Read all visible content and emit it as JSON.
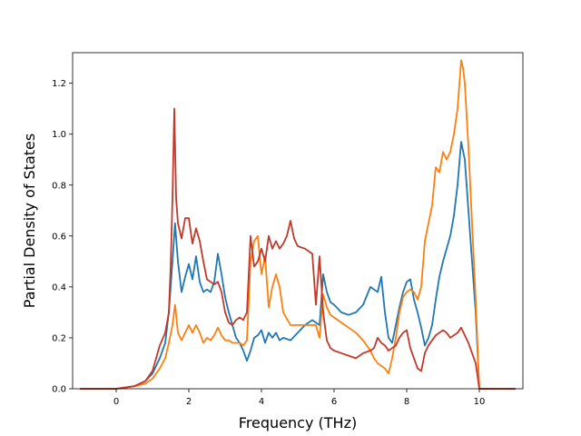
{
  "chart_data": {
    "type": "line",
    "title": "",
    "xlabel": "Frequency (THz)",
    "ylabel": "Partial Density of States",
    "xlim": [
      -1.2,
      11.2
    ],
    "ylim": [
      0,
      1.32
    ],
    "xticks": [
      0,
      2,
      4,
      6,
      8,
      10
    ],
    "yticks": [
      0.0,
      0.2,
      0.4,
      0.6,
      0.8,
      1.0,
      1.2
    ],
    "xtick_labels": [
      "0",
      "2",
      "4",
      "6",
      "8",
      "10"
    ],
    "ytick_labels": [
      "0.0",
      "0.2",
      "0.4",
      "0.6",
      "0.8",
      "1.0",
      "1.2"
    ],
    "grid": false,
    "legend": false,
    "series": [
      {
        "color": "#1f77b4",
        "x": [
          -1.0,
          0.0,
          0.5,
          0.8,
          1.0,
          1.2,
          1.35,
          1.45,
          1.55,
          1.62,
          1.7,
          1.8,
          1.9,
          2.0,
          2.1,
          2.2,
          2.3,
          2.4,
          2.5,
          2.6,
          2.7,
          2.8,
          2.9,
          3.0,
          3.1,
          3.2,
          3.3,
          3.4,
          3.5,
          3.6,
          3.7,
          3.8,
          3.9,
          4.0,
          4.1,
          4.2,
          4.3,
          4.4,
          4.5,
          4.6,
          4.8,
          5.0,
          5.2,
          5.4,
          5.5,
          5.6,
          5.7,
          5.8,
          5.9,
          6.0,
          6.2,
          6.4,
          6.6,
          6.8,
          7.0,
          7.1,
          7.2,
          7.3,
          7.4,
          7.5,
          7.6,
          7.7,
          7.8,
          7.9,
          8.0,
          8.1,
          8.2,
          8.3,
          8.4,
          8.5,
          8.6,
          8.7,
          8.8,
          8.9,
          9.0,
          9.1,
          9.2,
          9.3,
          9.4,
          9.5,
          9.6,
          9.7,
          9.8,
          9.9,
          10.0,
          10.5,
          11.0
        ],
        "y": [
          0.0,
          0.0,
          0.01,
          0.03,
          0.06,
          0.12,
          0.18,
          0.3,
          0.5,
          0.65,
          0.5,
          0.38,
          0.44,
          0.49,
          0.43,
          0.52,
          0.42,
          0.38,
          0.39,
          0.38,
          0.42,
          0.53,
          0.45,
          0.36,
          0.3,
          0.25,
          0.2,
          0.18,
          0.15,
          0.11,
          0.15,
          0.2,
          0.21,
          0.23,
          0.18,
          0.22,
          0.2,
          0.22,
          0.19,
          0.2,
          0.19,
          0.22,
          0.25,
          0.27,
          0.26,
          0.25,
          0.45,
          0.38,
          0.34,
          0.33,
          0.3,
          0.29,
          0.3,
          0.33,
          0.4,
          0.39,
          0.38,
          0.44,
          0.3,
          0.2,
          0.18,
          0.25,
          0.32,
          0.38,
          0.42,
          0.43,
          0.35,
          0.3,
          0.24,
          0.17,
          0.2,
          0.25,
          0.35,
          0.44,
          0.5,
          0.55,
          0.6,
          0.68,
          0.8,
          0.97,
          0.9,
          0.7,
          0.5,
          0.3,
          0.0,
          0.0,
          0.0
        ]
      },
      {
        "color": "#ff7f0e",
        "x": [
          -1.0,
          0.0,
          0.5,
          0.8,
          1.0,
          1.2,
          1.35,
          1.45,
          1.55,
          1.62,
          1.7,
          1.8,
          1.9,
          2.0,
          2.1,
          2.2,
          2.3,
          2.4,
          2.5,
          2.6,
          2.7,
          2.8,
          2.9,
          3.0,
          3.1,
          3.2,
          3.3,
          3.4,
          3.5,
          3.6,
          3.7,
          3.8,
          3.9,
          4.0,
          4.1,
          4.2,
          4.3,
          4.4,
          4.5,
          4.6,
          4.8,
          5.0,
          5.2,
          5.4,
          5.5,
          5.6,
          5.7,
          5.8,
          5.9,
          6.0,
          6.2,
          6.4,
          6.6,
          6.8,
          7.0,
          7.1,
          7.2,
          7.3,
          7.4,
          7.5,
          7.6,
          7.7,
          7.8,
          7.9,
          8.0,
          8.1,
          8.2,
          8.3,
          8.4,
          8.5,
          8.6,
          8.7,
          8.8,
          8.9,
          9.0,
          9.1,
          9.2,
          9.3,
          9.4,
          9.5,
          9.55,
          9.6,
          9.7,
          9.8,
          9.9,
          10.0,
          10.5,
          11.0
        ],
        "y": [
          0.0,
          0.0,
          0.01,
          0.02,
          0.04,
          0.08,
          0.12,
          0.18,
          0.25,
          0.33,
          0.22,
          0.19,
          0.22,
          0.25,
          0.22,
          0.25,
          0.22,
          0.18,
          0.2,
          0.19,
          0.21,
          0.24,
          0.21,
          0.19,
          0.19,
          0.18,
          0.18,
          0.18,
          0.17,
          0.19,
          0.5,
          0.58,
          0.6,
          0.45,
          0.52,
          0.32,
          0.4,
          0.45,
          0.4,
          0.3,
          0.25,
          0.25,
          0.25,
          0.25,
          0.25,
          0.2,
          0.37,
          0.32,
          0.29,
          0.28,
          0.26,
          0.24,
          0.22,
          0.19,
          0.15,
          0.12,
          0.1,
          0.09,
          0.08,
          0.06,
          0.12,
          0.2,
          0.3,
          0.36,
          0.38,
          0.39,
          0.38,
          0.35,
          0.4,
          0.58,
          0.65,
          0.72,
          0.87,
          0.85,
          0.93,
          0.9,
          0.93,
          1.0,
          1.1,
          1.29,
          1.26,
          1.2,
          0.95,
          0.65,
          0.35,
          0.0,
          0.0,
          0.0
        ]
      },
      {
        "color": "#c0392b",
        "x": [
          -1.0,
          0.0,
          0.5,
          0.8,
          1.0,
          1.2,
          1.35,
          1.45,
          1.5,
          1.55,
          1.6,
          1.65,
          1.7,
          1.8,
          1.9,
          2.0,
          2.1,
          2.2,
          2.3,
          2.4,
          2.5,
          2.6,
          2.7,
          2.8,
          2.9,
          3.0,
          3.1,
          3.2,
          3.3,
          3.4,
          3.5,
          3.6,
          3.7,
          3.8,
          3.9,
          4.0,
          4.1,
          4.2,
          4.3,
          4.4,
          4.5,
          4.6,
          4.7,
          4.8,
          4.9,
          5.0,
          5.2,
          5.4,
          5.5,
          5.6,
          5.7,
          5.8,
          5.9,
          6.0,
          6.2,
          6.4,
          6.6,
          6.8,
          7.0,
          7.1,
          7.2,
          7.3,
          7.4,
          7.5,
          7.6,
          7.7,
          7.8,
          7.9,
          8.0,
          8.1,
          8.2,
          8.3,
          8.4,
          8.5,
          8.6,
          8.7,
          8.8,
          8.9,
          9.0,
          9.1,
          9.2,
          9.3,
          9.4,
          9.5,
          9.6,
          9.7,
          9.8,
          9.9,
          10.0,
          10.5,
          11.0
        ],
        "y": [
          0.0,
          0.0,
          0.01,
          0.03,
          0.07,
          0.17,
          0.22,
          0.3,
          0.48,
          0.75,
          1.1,
          0.75,
          0.65,
          0.59,
          0.67,
          0.67,
          0.57,
          0.63,
          0.58,
          0.5,
          0.43,
          0.42,
          0.41,
          0.42,
          0.38,
          0.3,
          0.26,
          0.25,
          0.27,
          0.28,
          0.27,
          0.3,
          0.6,
          0.48,
          0.5,
          0.55,
          0.5,
          0.6,
          0.55,
          0.58,
          0.55,
          0.57,
          0.6,
          0.66,
          0.59,
          0.56,
          0.55,
          0.53,
          0.33,
          0.52,
          0.3,
          0.19,
          0.16,
          0.15,
          0.14,
          0.13,
          0.12,
          0.14,
          0.15,
          0.16,
          0.2,
          0.18,
          0.17,
          0.15,
          0.16,
          0.17,
          0.2,
          0.22,
          0.23,
          0.16,
          0.12,
          0.08,
          0.07,
          0.14,
          0.17,
          0.19,
          0.21,
          0.22,
          0.23,
          0.22,
          0.2,
          0.21,
          0.22,
          0.24,
          0.21,
          0.18,
          0.14,
          0.1,
          0.0,
          0.0,
          0.0
        ]
      }
    ]
  }
}
